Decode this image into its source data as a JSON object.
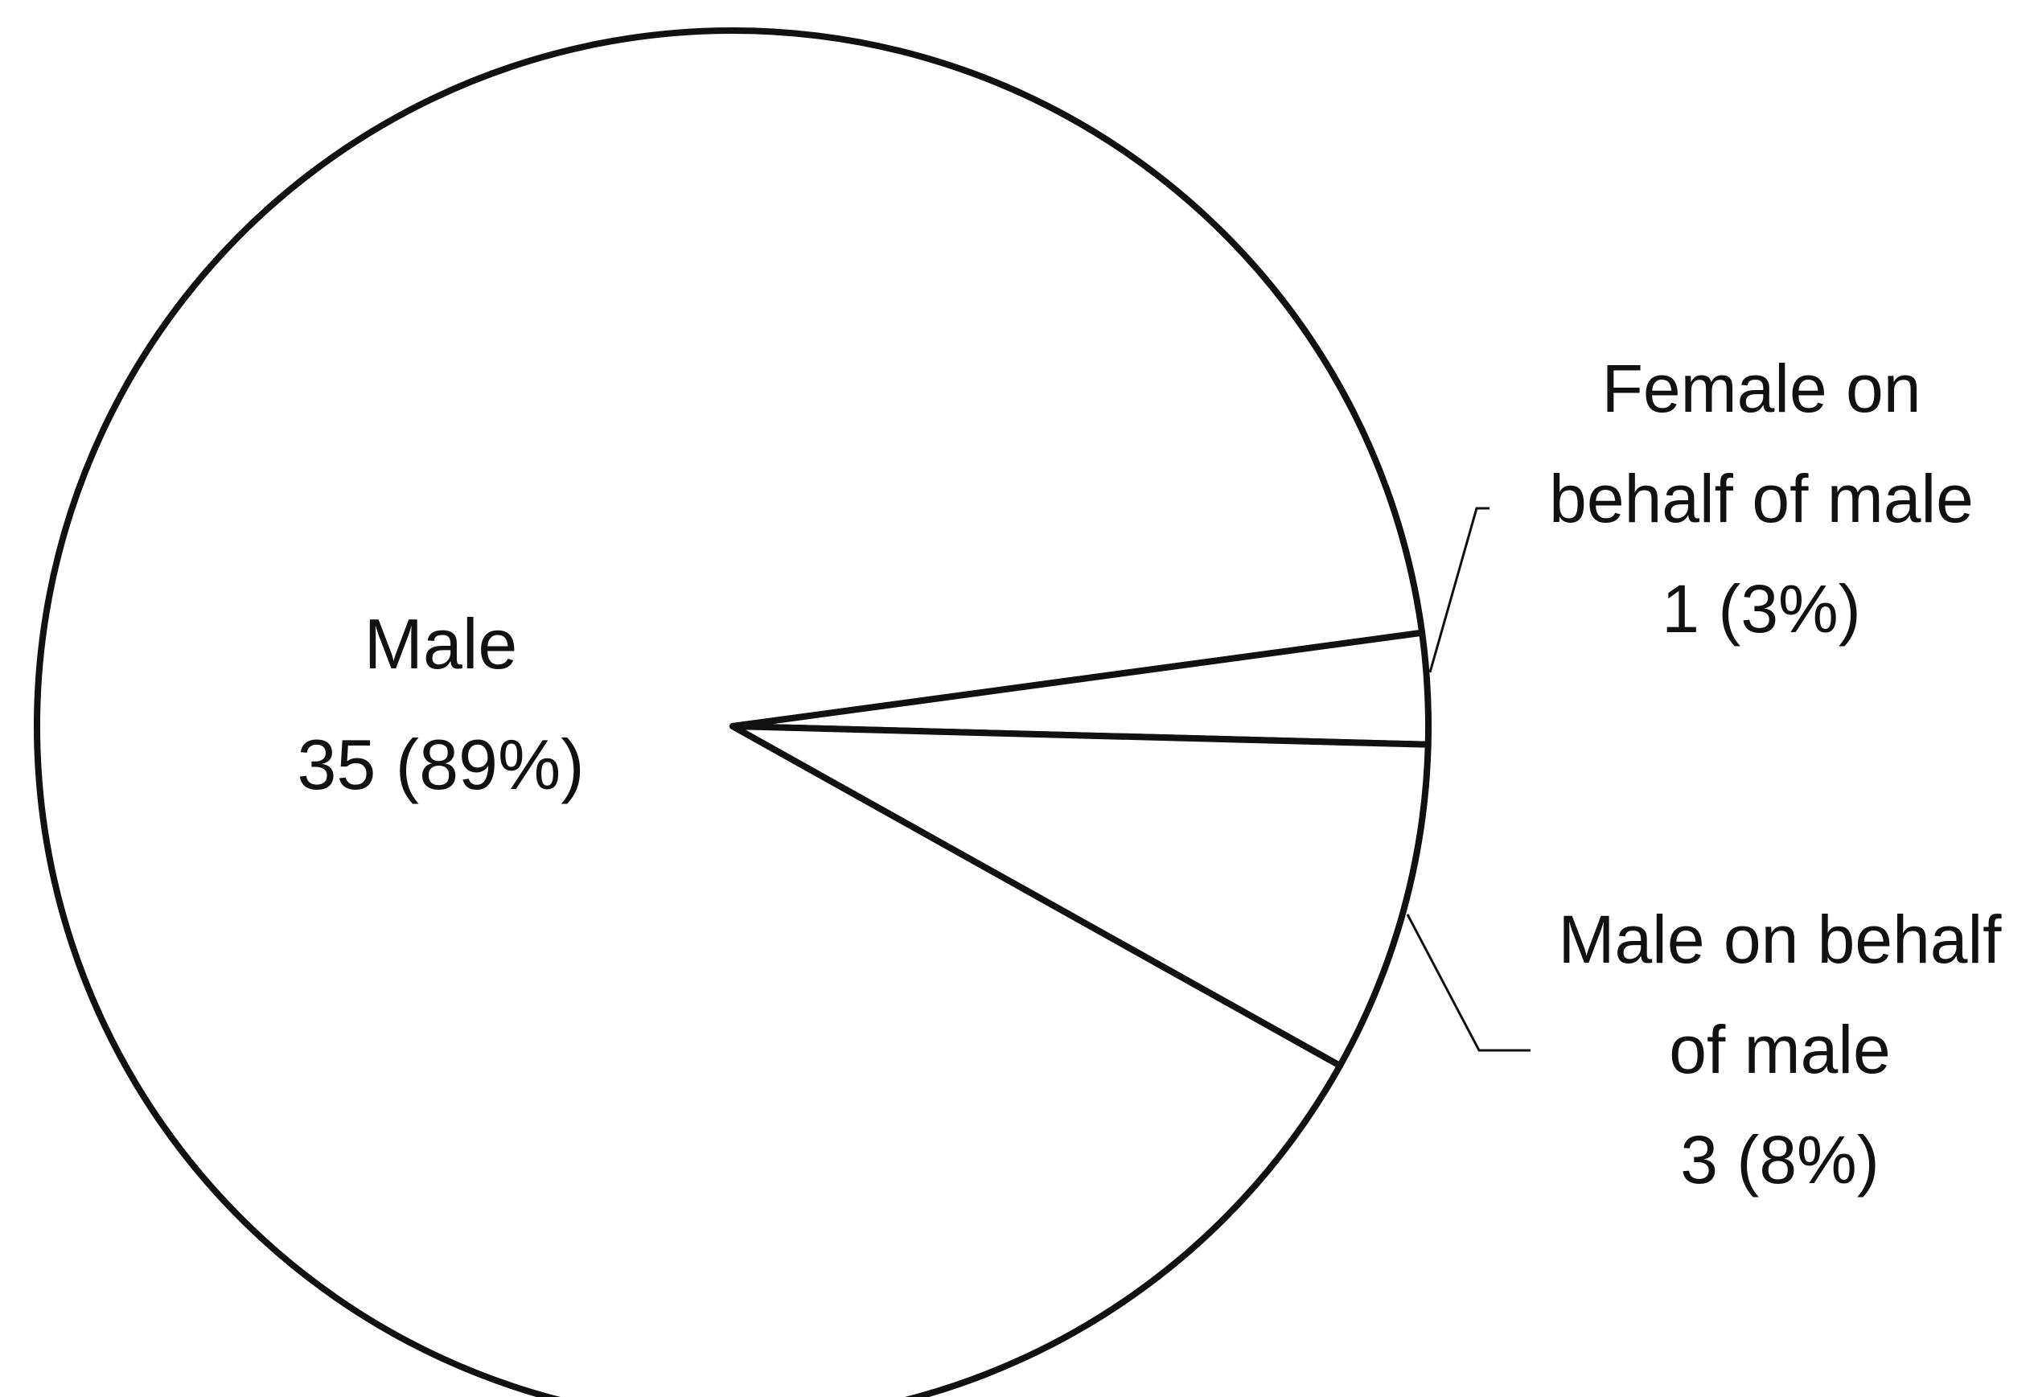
{
  "chart_data": {
    "type": "pie",
    "categories": [
      "Male",
      "Female on behalf of male",
      "Male on behalf of male"
    ],
    "values": [
      35,
      1,
      3
    ],
    "value_labels": [
      "35 (89%)",
      "1 (3%)",
      "3 (8%)"
    ],
    "color": "#ffffff"
  }
}
